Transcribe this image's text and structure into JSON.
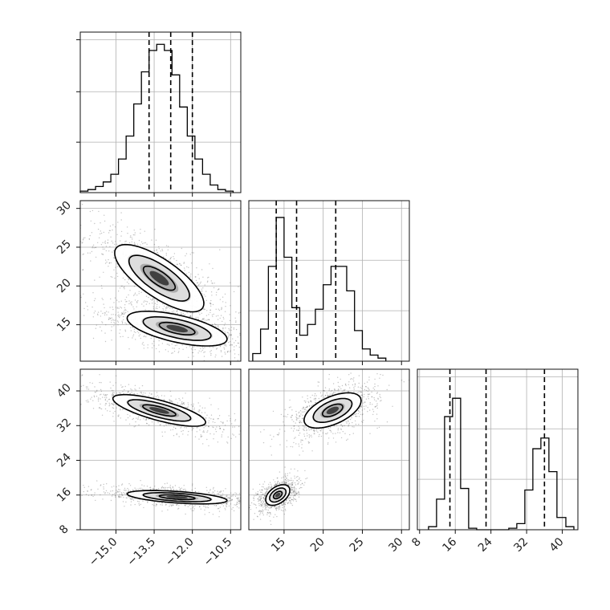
{
  "chart_data": {
    "type": "corner",
    "grid": true,
    "panels": [
      {
        "id": "hist-0",
        "type": "histogram",
        "xlim": [
          -16.4,
          -10.1
        ],
        "ylim": [
          0,
          1.05
        ],
        "xticks": [
          -15.0,
          -13.5,
          -12.0,
          -10.5
        ],
        "yticks": [],
        "show_xtick_labels": false,
        "bins": [
          -16.4,
          -16.1,
          -15.8,
          -15.5,
          -15.2,
          -14.9,
          -14.6,
          -14.3,
          -14.0,
          -13.7,
          -13.4,
          -13.1,
          -12.8,
          -12.5,
          -12.2,
          -11.9,
          -11.6,
          -11.3,
          -11.0,
          -10.7,
          -10.4
        ],
        "counts": [
          0.01,
          0.02,
          0.04,
          0.07,
          0.12,
          0.22,
          0.37,
          0.58,
          0.79,
          0.93,
          0.97,
          0.93,
          0.77,
          0.56,
          0.37,
          0.22,
          0.12,
          0.05,
          0.02,
          0.01
        ],
        "quantiles": [
          -13.7,
          -12.85,
          -12.0
        ]
      },
      {
        "id": "scatter-1-0",
        "type": "2d-density",
        "xlim": [
          -16.4,
          -10.1
        ],
        "ylim": [
          10.3,
          31.0
        ],
        "xticks": [
          -15.0,
          -13.5,
          -12.0,
          -10.5
        ],
        "yticks": [
          15,
          20,
          25,
          30
        ],
        "ytick_labels": [
          "15",
          "20",
          "25",
          "30"
        ],
        "show_xtick_labels": false,
        "clusters": [
          {
            "center": [
              -13.3,
              21.0
            ],
            "sx": 1.25,
            "sy": 3.1,
            "rho": -0.75,
            "n": 900
          },
          {
            "center": [
              -12.6,
              14.5
            ],
            "sx": 1.4,
            "sy": 1.6,
            "rho": -0.6,
            "n": 900
          }
        ]
      },
      {
        "id": "hist-1",
        "type": "histogram",
        "xlim": [
          10.5,
          31.0
        ],
        "ylim": [
          0,
          1.05
        ],
        "xticks": [
          15,
          20,
          25,
          30
        ],
        "yticks": [],
        "show_xtick_labels": false,
        "bins": [
          11.0,
          12.0,
          13.0,
          14.0,
          15.0,
          16.0,
          17.0,
          18.0,
          19.0,
          20.0,
          21.0,
          22.0,
          23.0,
          24.0,
          25.0,
          26.0,
          27.0,
          28.0
        ],
        "counts": [
          0.05,
          0.21,
          0.62,
          0.94,
          0.68,
          0.35,
          0.17,
          0.24,
          0.34,
          0.5,
          0.62,
          0.62,
          0.46,
          0.2,
          0.08,
          0.04,
          0.02
        ],
        "quantiles": [
          14.0,
          16.6,
          21.6
        ]
      },
      {
        "id": "scatter-2-0",
        "type": "2d-density",
        "xlim": [
          -16.4,
          -10.1
        ],
        "ylim": [
          8.0,
          45.0
        ],
        "xticks": [
          -15.0,
          -13.5,
          -12.0,
          -10.5
        ],
        "xtick_labels": [
          "−15.0",
          "−13.5",
          "−12.0",
          "−10.5"
        ],
        "yticks": [
          8,
          16,
          24,
          32,
          40
        ],
        "ytick_labels": [
          "8",
          "16",
          "24",
          "32",
          "40"
        ],
        "show_xtick_labels": true,
        "clusters": [
          {
            "center": [
              -13.3,
              35.5
            ],
            "sx": 1.3,
            "sy": 2.6,
            "rho": -0.75,
            "n": 900
          },
          {
            "center": [
              -12.6,
              15.5
            ],
            "sx": 1.4,
            "sy": 1.1,
            "rho": -0.5,
            "n": 900
          }
        ]
      },
      {
        "id": "scatter-2-1",
        "type": "2d-density",
        "xlim": [
          10.5,
          31.0
        ],
        "ylim": [
          8.0,
          45.0
        ],
        "xticks": [
          15,
          20,
          25,
          30
        ],
        "xtick_labels": [
          "15",
          "20",
          "25",
          "30"
        ],
        "yticks": [
          8,
          16,
          24,
          32,
          40
        ],
        "show_xtick_labels": true,
        "clusters": [
          {
            "center": [
              21.2,
              35.5
            ],
            "sx": 2.6,
            "sy": 2.9,
            "rho": 0.55,
            "n": 900
          },
          {
            "center": [
              14.2,
              16.0
            ],
            "sx": 1.1,
            "sy": 1.7,
            "rho": 0.45,
            "n": 900
          }
        ]
      },
      {
        "id": "hist-2",
        "type": "histogram",
        "xlim": [
          7.5,
          43.5
        ],
        "ylim": [
          0,
          1.05
        ],
        "xticks": [
          8,
          16,
          24,
          32,
          40
        ],
        "xtick_labels": [
          "8",
          "16",
          "24",
          "32",
          "40"
        ],
        "yticks": [],
        "show_xtick_labels": true,
        "bins": [
          10.0,
          11.8,
          13.6,
          15.4,
          17.2,
          19.0,
          20.8,
          22.6,
          24.4,
          26.2,
          28.0,
          29.8,
          31.6,
          33.4,
          35.2,
          37.0,
          38.8,
          40.8,
          42.6
        ],
        "counts": [
          0.02,
          0.2,
          0.74,
          0.86,
          0.27,
          0.01,
          0.0,
          0.0,
          0.0,
          0.0,
          0.01,
          0.04,
          0.26,
          0.53,
          0.6,
          0.38,
          0.08,
          0.02
        ],
        "quantiles": [
          14.8,
          22.9,
          36.0
        ]
      }
    ]
  }
}
